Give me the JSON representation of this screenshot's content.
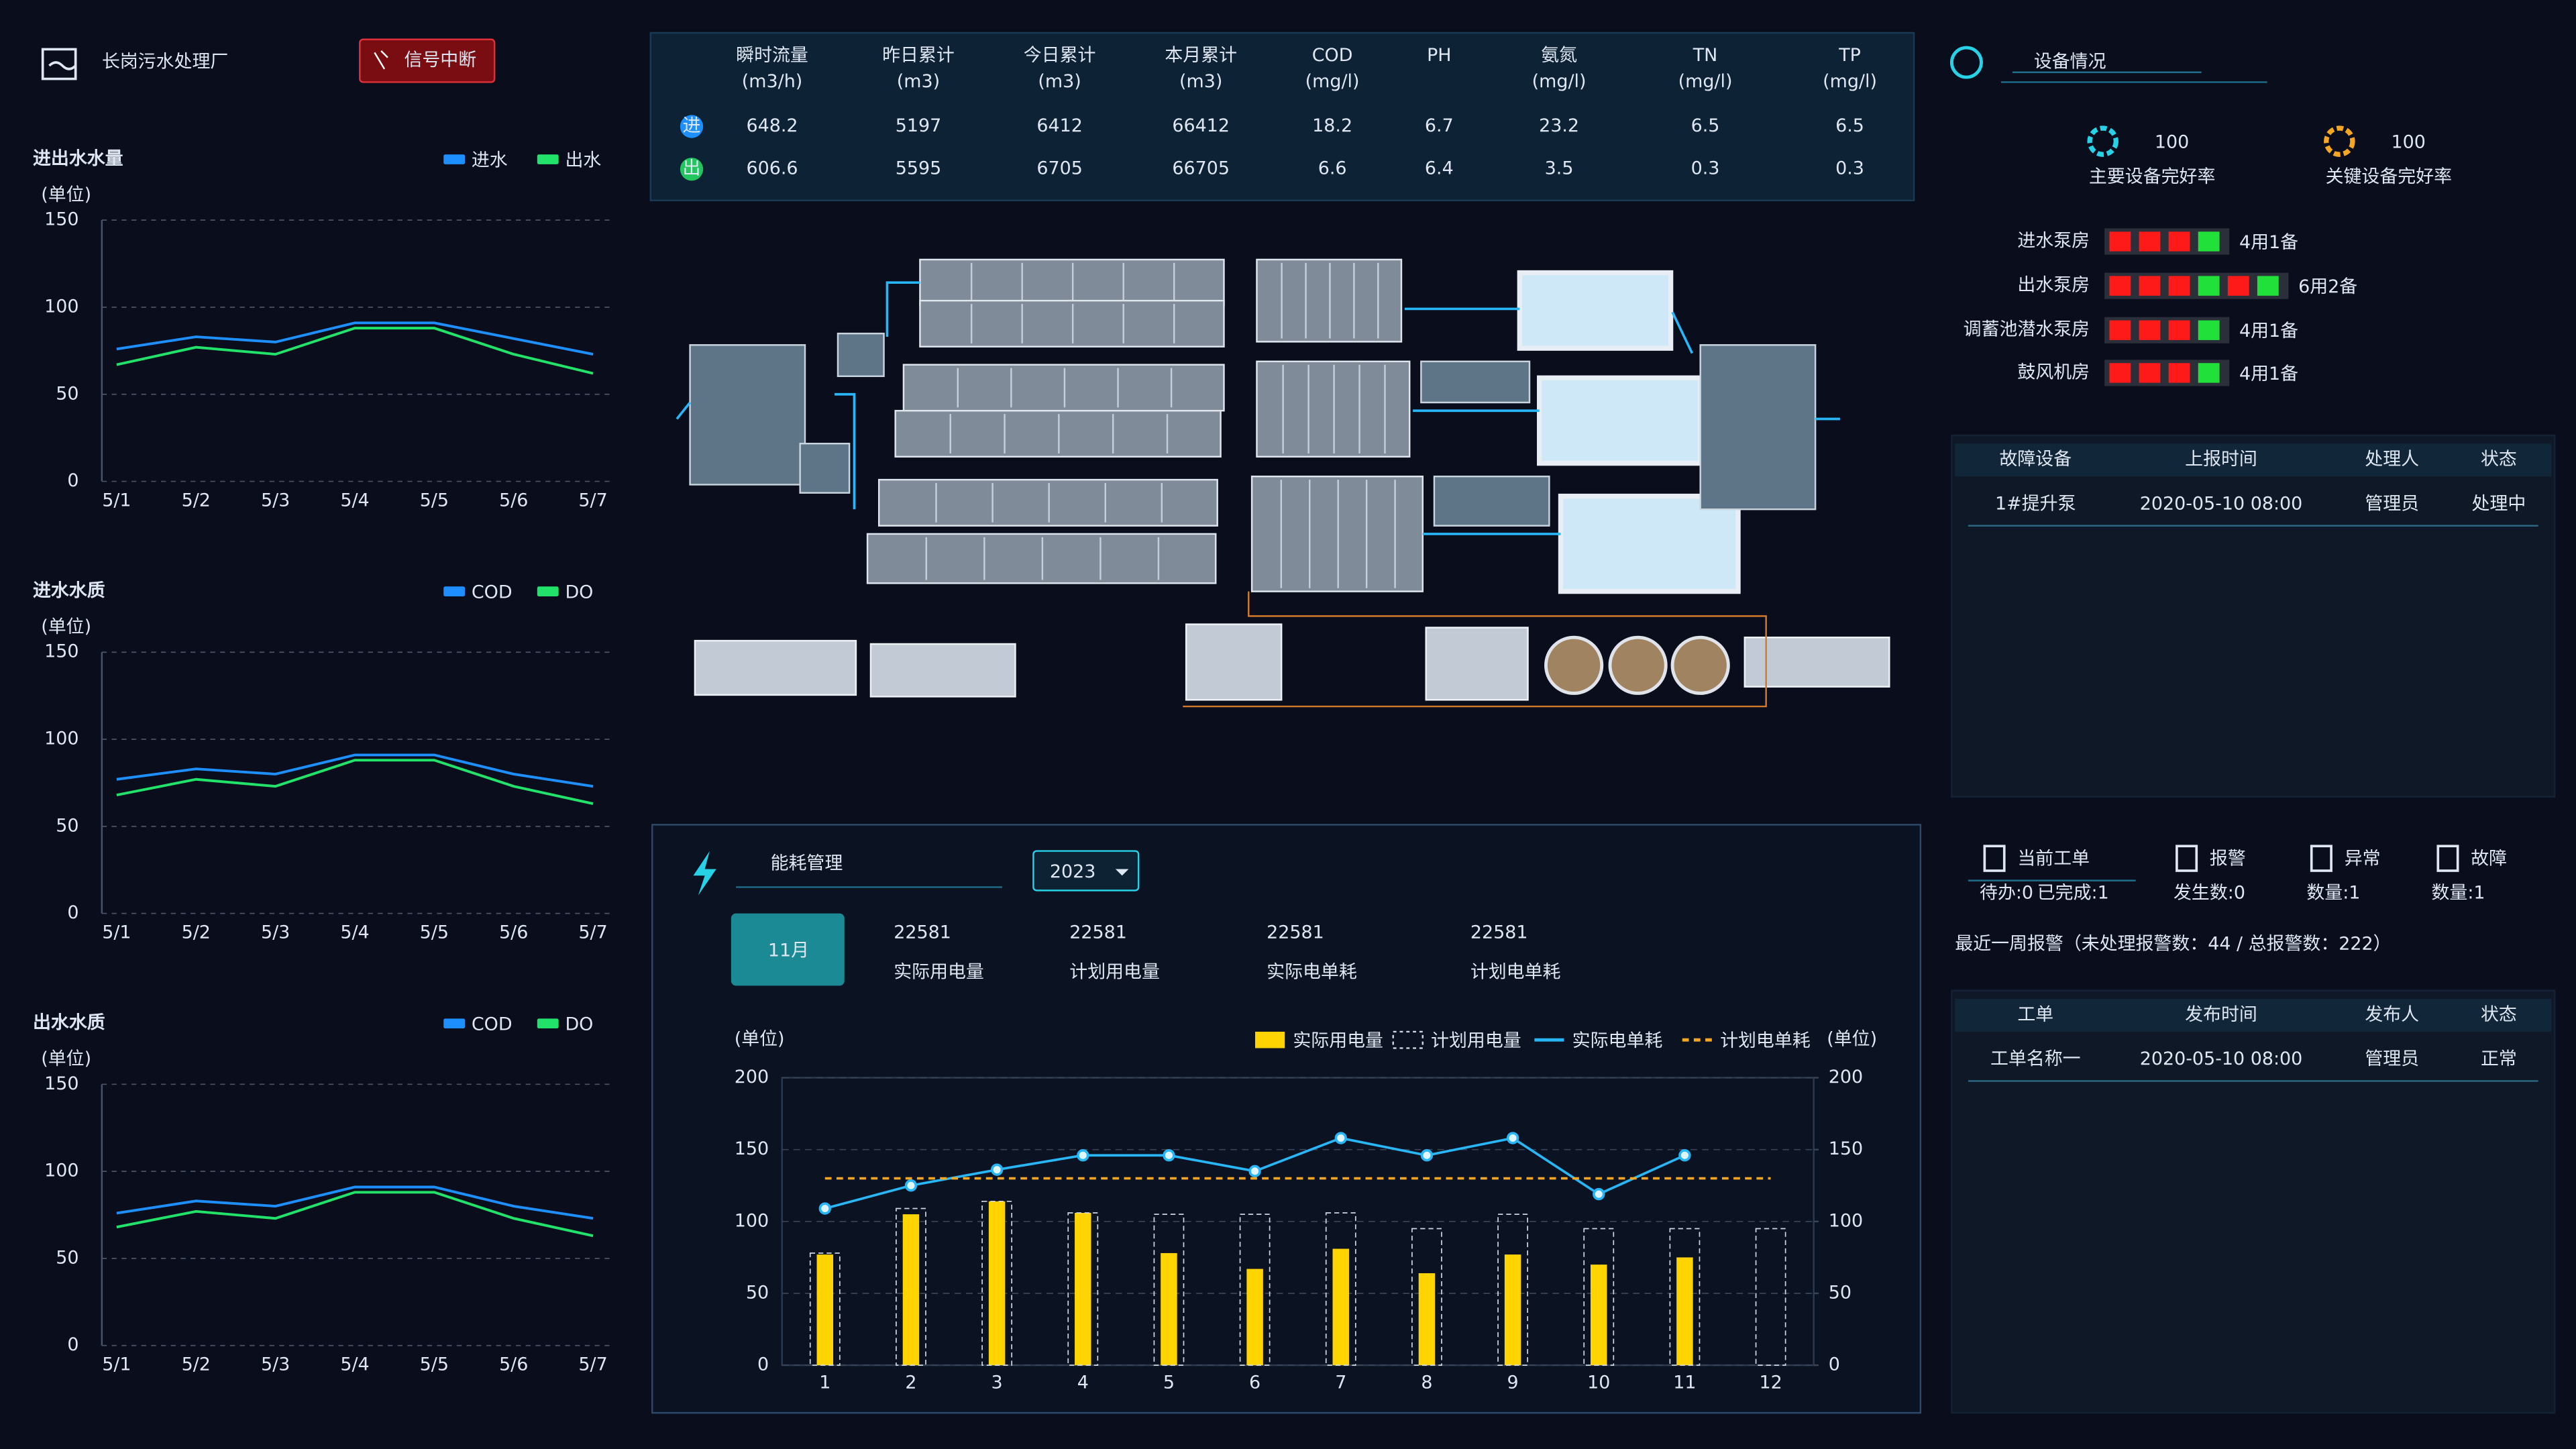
{
  "header": {
    "title": "长岗污水处理厂",
    "badge": "信号中断"
  },
  "flow_table": {
    "columns": [
      {
        "name": "瞬时流量",
        "unit": "(m3/h)"
      },
      {
        "name": "昨日累计",
        "unit": "(m3)"
      },
      {
        "name": "今日累计",
        "unit": "(m3)"
      },
      {
        "name": "本月累计",
        "unit": "(m3)"
      },
      {
        "name": "COD",
        "unit": "(mg/l)"
      },
      {
        "name": "PH",
        "unit": ""
      },
      {
        "name": "氨氮",
        "unit": "(mg/l)"
      },
      {
        "name": "TN",
        "unit": "(mg/l)"
      },
      {
        "name": "TP",
        "unit": "(mg/l)"
      }
    ],
    "rows": [
      {
        "label": "进",
        "color": "#1e8fff",
        "values": [
          648.2,
          5197,
          6412,
          66412,
          18.2,
          6.7,
          23.2,
          6.5,
          6.5
        ]
      },
      {
        "label": "出",
        "color": "#22c55e",
        "values": [
          606.6,
          5595,
          6705,
          66705,
          6.6,
          6.4,
          3.5,
          0.3,
          0.3
        ]
      }
    ]
  },
  "left_charts": [
    {
      "type": "line",
      "title": "进出水水量",
      "ylabel": "(单位)",
      "categories": [
        "5/1",
        "5/2",
        "5/3",
        "5/4",
        "5/5",
        "5/6",
        "5/7"
      ],
      "ylim": [
        0,
        150
      ],
      "yticks": [
        0,
        50,
        100,
        150
      ],
      "grid": true,
      "series": [
        {
          "name": "进水",
          "color": "#1e8fff",
          "values": [
            76,
            83,
            80,
            91,
            91,
            82,
            73
          ]
        },
        {
          "name": "出水",
          "color": "#22e36a",
          "values": [
            67,
            77,
            73,
            88,
            88,
            73,
            62
          ]
        }
      ]
    },
    {
      "type": "line",
      "title": "进水水质",
      "ylabel": "(单位)",
      "categories": [
        "5/1",
        "5/2",
        "5/3",
        "5/4",
        "5/5",
        "5/6",
        "5/7"
      ],
      "ylim": [
        0,
        150
      ],
      "yticks": [
        0,
        50,
        100,
        150
      ],
      "grid": true,
      "series": [
        {
          "name": "COD",
          "color": "#1e8fff",
          "values": [
            77,
            83,
            80,
            91,
            91,
            80,
            73
          ]
        },
        {
          "name": "DO",
          "color": "#22e36a",
          "values": [
            68,
            77,
            73,
            88,
            88,
            73,
            63
          ]
        }
      ]
    },
    {
      "type": "line",
      "title": "出水水质",
      "ylabel": "(单位)",
      "categories": [
        "5/1",
        "5/2",
        "5/3",
        "5/4",
        "5/5",
        "5/6",
        "5/7"
      ],
      "ylim": [
        0,
        150
      ],
      "yticks": [
        0,
        50,
        100,
        150
      ],
      "grid": true,
      "series": [
        {
          "name": "COD",
          "color": "#1e8fff",
          "values": [
            76,
            83,
            80,
            91,
            91,
            80,
            73
          ]
        },
        {
          "name": "DO",
          "color": "#22e36a",
          "values": [
            68,
            77,
            73,
            88,
            88,
            73,
            63
          ]
        }
      ]
    }
  ],
  "equipment": {
    "title": "设备情况",
    "stats": [
      {
        "value": 100,
        "label": "主要设备完好率",
        "color": "#27d1e6"
      },
      {
        "value": 100,
        "label": "关键设备完好率",
        "color": "#f5a623"
      }
    ],
    "pumps": [
      {
        "name": "进水泵房",
        "lights": [
          "#ff1a1a",
          "#ff1a1a",
          "#ff1a1a",
          "#22e03a"
        ],
        "text": "4用1备"
      },
      {
        "name": "出水泵房",
        "lights": [
          "#ff1a1a",
          "#ff1a1a",
          "#ff1a1a",
          "#22e03a",
          "#ff1a1a",
          "#22e03a"
        ],
        "text": "6用2备"
      },
      {
        "name": "调蓄池潜水泵房",
        "lights": [
          "#ff1a1a",
          "#ff1a1a",
          "#ff1a1a",
          "#22e03a"
        ],
        "text": "4用1备"
      },
      {
        "name": "鼓风机房",
        "lights": [
          "#ff1a1a",
          "#ff1a1a",
          "#ff1a1a",
          "#22e03a"
        ],
        "text": "4用1备"
      }
    ]
  },
  "fault_table": {
    "headers": [
      "故障设备",
      "上报时间",
      "处理人",
      "状态"
    ],
    "rows": [
      [
        "1#提升泵",
        "2020-05-10 08:00",
        "管理员",
        "处理中"
      ]
    ]
  },
  "work_orders": {
    "tabs": [
      {
        "title": "当前工单",
        "sub": [
          "待办:0",
          "已完成:1"
        ]
      },
      {
        "title": "报警",
        "sub": [
          "发生数:0"
        ]
      },
      {
        "title": "异常",
        "sub": [
          "数量:1"
        ]
      },
      {
        "title": "故障",
        "sub": [
          "数量:1"
        ]
      }
    ],
    "summary": "最近一周报警（未处理报警数：44 / 总报警数：222）",
    "headers": [
      "工单",
      "发布时间",
      "发布人",
      "状态"
    ],
    "rows": [
      [
        "工单名称一",
        "2020-05-10 08:00",
        "管理员",
        "正常"
      ]
    ]
  },
  "energy": {
    "title": "能耗管理",
    "year": "2023",
    "month": "11月",
    "kpis": [
      {
        "value": 22581,
        "label": "实际用电量"
      },
      {
        "value": 22581,
        "label": "计划用电量"
      },
      {
        "value": 22581,
        "label": "实际电单耗"
      },
      {
        "value": 22581,
        "label": "计划电单耗"
      }
    ],
    "chart_data": {
      "type": "bar_line",
      "ylabel": "(单位)",
      "y2label": "(单位)",
      "categories": [
        "1",
        "2",
        "3",
        "4",
        "5",
        "6",
        "7",
        "8",
        "9",
        "10",
        "11",
        "12"
      ],
      "ylim": [
        0,
        200
      ],
      "yticks": [
        0,
        50,
        100,
        150,
        200
      ],
      "y2lim": [
        0,
        200
      ],
      "y2ticks": [
        0,
        50,
        100,
        150,
        200
      ],
      "grid": true,
      "series": [
        {
          "name": "实际用电量",
          "color": "#ffd400",
          "kind": "bar",
          "values": [
            77,
            105,
            114,
            106,
            78,
            67,
            81,
            64,
            77,
            70,
            75,
            null
          ]
        },
        {
          "name": "计划用电量",
          "color": "#cfd6e0",
          "kind": "dashed_bar",
          "values": [
            78,
            109,
            114,
            106,
            105,
            105,
            106,
            95,
            105,
            95,
            95,
            95
          ]
        },
        {
          "name": "实际电单耗",
          "color": "#29b6f6",
          "kind": "line",
          "axis": "y2",
          "values": [
            109,
            125,
            136,
            146,
            146,
            135,
            158,
            146,
            158,
            119,
            146,
            null
          ]
        },
        {
          "name": "计划电单耗",
          "color": "#f5a623",
          "kind": "dashed_line",
          "axis": "y2",
          "values": [
            130,
            130,
            130,
            130,
            130,
            130,
            130,
            130,
            130,
            130,
            130,
            130
          ]
        }
      ]
    }
  }
}
